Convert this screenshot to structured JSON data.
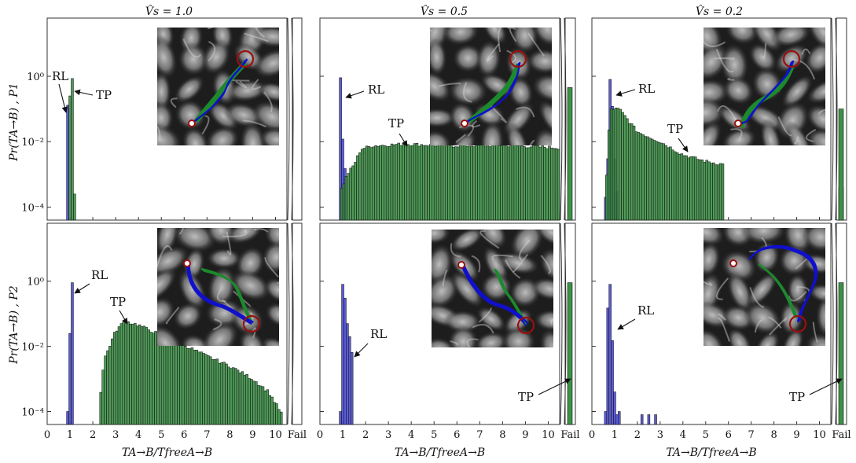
{
  "colors": {
    "rl": "#4a4ad4",
    "tp": "#3c9146",
    "rl_path": "#1010cc",
    "tp_path": "#1c8a2c",
    "marker": "#9a1010"
  },
  "labels": {
    "col_titles": [
      "V̂s = 1.0",
      "V̂s = 0.5",
      "V̂s = 0.2"
    ],
    "ylabel_top": "Pr(TA→B) , P1",
    "ylabel_bottom": "Pr(TA→B) , P2",
    "xlabel": "TA→B/TfreeA→B",
    "fail": "Fail",
    "x_ticks": [
      "0",
      "1",
      "2",
      "3",
      "4",
      "5",
      "6",
      "7",
      "8",
      "9",
      "10"
    ],
    "y_ticks": [
      "10⁰",
      "10⁻²",
      "10⁻⁴"
    ],
    "rl": "RL",
    "tp": "TP"
  },
  "chart_data": [
    {
      "type": "bar",
      "panel": "P1, Vs=1.0",
      "yscale": "log",
      "xlim": [
        0,
        10.5
      ],
      "ylim": [
        4e-05,
        60
      ],
      "series": [
        {
          "name": "RL",
          "x": [
            0.9
          ],
          "values": [
            0.13
          ],
          "fail": 0
        },
        {
          "name": "TP",
          "x": [
            1.0,
            1.1,
            1.2
          ],
          "values": [
            0.25,
            0.85,
            0.00025
          ],
          "fail": 0
        }
      ]
    },
    {
      "type": "bar",
      "panel": "P1, Vs=0.5",
      "yscale": "log",
      "xlim": [
        0,
        10.5
      ],
      "ylim": [
        4e-05,
        60
      ],
      "series": [
        {
          "name": "RL",
          "x": [
            0.9,
            1.0,
            1.1
          ],
          "values": [
            0.9,
            0.012,
            0.0015
          ],
          "fail": 0
        },
        {
          "name": "TP",
          "range": [
            0.9,
            10.5
          ],
          "profile": [
            [
              0.9,
              0.0003
            ],
            [
              1.2,
              0.001
            ],
            [
              1.5,
              0.002
            ],
            [
              1.8,
              0.006
            ],
            [
              2.3,
              0.0075
            ],
            [
              3.8,
              0.0085
            ],
            [
              5.5,
              0.0075
            ],
            [
              8,
              0.0078
            ],
            [
              10.5,
              0.0065
            ]
          ],
          "fail": 0.45
        }
      ]
    },
    {
      "type": "bar",
      "panel": "P1, Vs=0.2",
      "yscale": "log",
      "xlim": [
        0,
        10.5
      ],
      "ylim": [
        4e-05,
        60
      ],
      "series": [
        {
          "name": "RL",
          "x": [
            0.6,
            0.7,
            0.8,
            0.9,
            1.0,
            1.1
          ],
          "values": [
            0.0002,
            0.003,
            0.8,
            0.12,
            0.003,
            0.0003
          ],
          "fail": 0.0004
        },
        {
          "name": "TP",
          "range": [
            0.6,
            5.8
          ],
          "profile": [
            [
              0.6,
              0.0002
            ],
            [
              0.8,
              0.1
            ],
            [
              1.2,
              0.1
            ],
            [
              2,
              0.02
            ],
            [
              3,
              0.01
            ],
            [
              4,
              0.004
            ],
            [
              5,
              0.0025
            ],
            [
              5.8,
              0.002
            ]
          ],
          "fail": 0.1
        }
      ]
    },
    {
      "type": "bar",
      "panel": "P2, Vs=1.0",
      "yscale": "log",
      "xlim": [
        0,
        10.5
      ],
      "ylim": [
        4e-05,
        60
      ],
      "series": [
        {
          "name": "RL",
          "x": [
            0.9,
            1.0,
            1.1
          ],
          "values": [
            0.0001,
            0.025,
            0.9
          ],
          "fail": 0
        },
        {
          "name": "TP",
          "range": [
            2.3,
            10.3
          ],
          "profile": [
            [
              2.3,
              0.0002
            ],
            [
              2.5,
              0.004
            ],
            [
              3,
              0.03
            ],
            [
              3.4,
              0.06
            ],
            [
              4,
              0.045
            ],
            [
              5,
              0.022
            ],
            [
              6,
              0.011
            ],
            [
              7,
              0.005
            ],
            [
              8,
              0.0025
            ],
            [
              9,
              0.001
            ],
            [
              9.7,
              0.0004
            ],
            [
              10.3,
              8e-05
            ]
          ],
          "fail": 0
        }
      ]
    },
    {
      "type": "bar",
      "panel": "P2, Vs=0.5",
      "yscale": "log",
      "xlim": [
        0,
        10.5
      ],
      "ylim": [
        4e-05,
        60
      ],
      "series": [
        {
          "name": "RL",
          "x": [
            0.9,
            1.0,
            1.1,
            1.2,
            1.3,
            1.4
          ],
          "values": [
            0.0001,
            0.8,
            0.3,
            0.05,
            0.02,
            0.0065
          ],
          "fail": 0
        },
        {
          "name": "TP",
          "values": [],
          "fail": 0.9
        }
      ]
    },
    {
      "type": "bar",
      "panel": "P2, Vs=0.2",
      "yscale": "log",
      "xlim": [
        0,
        10.5
      ],
      "ylim": [
        4e-05,
        60
      ],
      "series": [
        {
          "name": "RL",
          "x": [
            0.6,
            0.7,
            0.8,
            0.9,
            1.0,
            1.1,
            1.2,
            2.2,
            2.5,
            2.8
          ],
          "values": [
            0.0001,
            0.15,
            0.8,
            0.015,
            0.0004,
            8e-05,
            0.0001,
            8e-05,
            8e-05,
            8e-05
          ],
          "fail": 0
        },
        {
          "name": "TP",
          "values": [],
          "fail": 0.9
        }
      ]
    }
  ]
}
